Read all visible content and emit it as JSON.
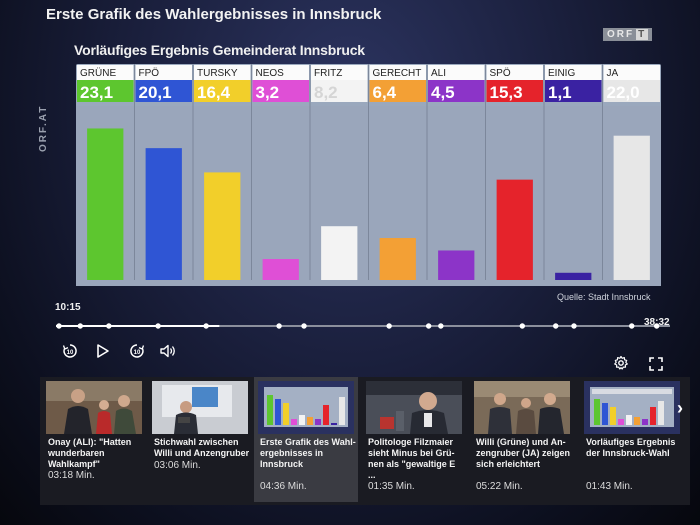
{
  "video": {
    "title": "Erste Grafik des Wahlergebnisses in Innsbruck",
    "logo_text": "ORF",
    "logo_suffix": "T"
  },
  "side_logo": "ORF.AT",
  "chart_data": {
    "type": "bar",
    "title": "Vorläufiges Ergebnis Gemeinderat Innsbruck",
    "categories": [
      "GRÜNE",
      "FPÖ",
      "TURSKY",
      "NEOS",
      "FRITZ",
      "GERECHT",
      "ALI",
      "SPÖ",
      "EINIG",
      "JA"
    ],
    "values": [
      23.1,
      20.1,
      16.4,
      3.2,
      8.2,
      6.4,
      4.5,
      15.3,
      1.1,
      22.0
    ],
    "value_labels": [
      "23,1",
      "20,1",
      "16,4",
      "3,2",
      "8,2",
      "6,4",
      "4,5",
      "15,3",
      "1,1",
      "22,0"
    ],
    "colors": [
      "#5dc62f",
      "#2f55d4",
      "#f2cf2a",
      "#df4fd6",
      "#f3f3f3",
      "#f3a035",
      "#8c34c8",
      "#e5232b",
      "#3a22a2",
      "#e7e7e7"
    ],
    "label_colors": [
      "#ffffff",
      "#ffffff",
      "#ffffff",
      "#ffffff",
      "#d5d5d5",
      "#ffffff",
      "#ffffff",
      "#ffffff",
      "#ffffff",
      "#ffffff"
    ],
    "ylim": [
      0,
      25
    ],
    "source": "Quelle: Stadt Innsbruck"
  },
  "player": {
    "current_time": "10:15",
    "total_time": "38:32",
    "progress": 0.266,
    "chapter_markers": [
      0,
      0.035,
      0.082,
      0.163,
      0.242,
      0.362,
      0.403,
      0.543,
      0.608,
      0.628,
      0.762,
      0.817,
      0.847,
      0.942,
      0.983
    ]
  },
  "controls": {
    "rewind_icon": "rewind-10-icon",
    "play_icon": "play-icon",
    "forward_icon": "forward-10-icon",
    "volume_icon": "volume-icon",
    "settings_icon": "gear-icon",
    "fullscreen_icon": "fullscreen-icon"
  },
  "playlist": [
    {
      "title": "Onay (ALI): \"Hatten wunderbaren Wahlkampf\"",
      "duration": "03:18 Min."
    },
    {
      "title": "Stichwahl zwischen Willi und Anzengruber",
      "duration": "03:06 Min."
    },
    {
      "title": "Erste Grafik des Wahl-ergebnisses in Innsbruck",
      "duration": "04:36 Min.",
      "active": true
    },
    {
      "title": "Politologe Filzmaier sieht Minus bei Grü-nen als \"gewaltige E ...",
      "duration": "01:35 Min."
    },
    {
      "title": "Willi (Grüne) und An-zengruber (JA) zeigen sich erleichtert",
      "duration": "05:22 Min."
    },
    {
      "title": "Vorläufiges Ergebnis der Innsbruck-Wahl",
      "duration": "01:43 Min."
    }
  ]
}
